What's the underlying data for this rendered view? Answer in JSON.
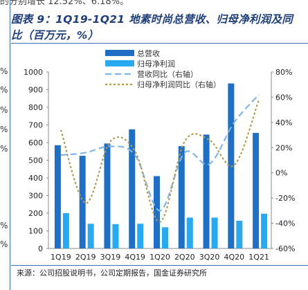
{
  "page": {
    "top_text": "的分别增长 12.52%、6.18%。",
    "title_line1": "图表 9：1Q19-1Q21 地素时尚总营收、归母净利润及同",
    "title_line2": "比（百万元，%）",
    "left_edge_marks": [
      "%",
      "%",
      "%",
      "%",
      "%",
      "%",
      "%"
    ],
    "source": "来源：公司招股说明书，公司定期报告，国金证券研究所"
  },
  "colors": {
    "revenue": "#1f6fc4",
    "net_profit": "#29aaf0",
    "revenue_yoy": "#7fb5e8",
    "profit_yoy": "#b39a4f",
    "rule": "#3a6fb5",
    "title": "#1f3f7a"
  },
  "chart_data": {
    "type": "bar",
    "categories": [
      "1Q19",
      "2Q19",
      "3Q19",
      "4Q19",
      "1Q20",
      "2Q20",
      "3Q20",
      "4Q20",
      "1Q21"
    ],
    "series": [
      {
        "name": "总营收",
        "type": "bar",
        "axis": "left",
        "values": [
          585,
          525,
          595,
          675,
          410,
          580,
          645,
          935,
          655
        ]
      },
      {
        "name": "归母净利润",
        "type": "bar",
        "axis": "left",
        "values": [
          200,
          140,
          138,
          140,
          120,
          175,
          175,
          157,
          197
        ]
      },
      {
        "name": "营收同比（右轴）",
        "type": "line",
        "style": "dashed",
        "axis": "right",
        "values": [
          14,
          16,
          21,
          14,
          -30,
          16,
          7,
          40,
          62
        ]
      },
      {
        "name": "归母净利润同比（右轴）",
        "type": "line",
        "style": "dotted",
        "axis": "right",
        "values": [
          34,
          -24,
          25,
          17,
          -39,
          25,
          26,
          6,
          58
        ]
      }
    ],
    "left_axis": {
      "min": 0,
      "max": 1000,
      "step": 100,
      "tick_labels": [
        "0",
        "100",
        "200",
        "300",
        "400",
        "500",
        "600",
        "700",
        "800",
        "900",
        "1000"
      ]
    },
    "right_axis": {
      "min": -60,
      "max": 80,
      "step": 20,
      "tick_labels": [
        "-60%",
        "-40%",
        "-20%",
        "0%",
        "20%",
        "40%",
        "60%",
        "80%"
      ]
    },
    "legend_placement": "top-center",
    "grid": false
  }
}
